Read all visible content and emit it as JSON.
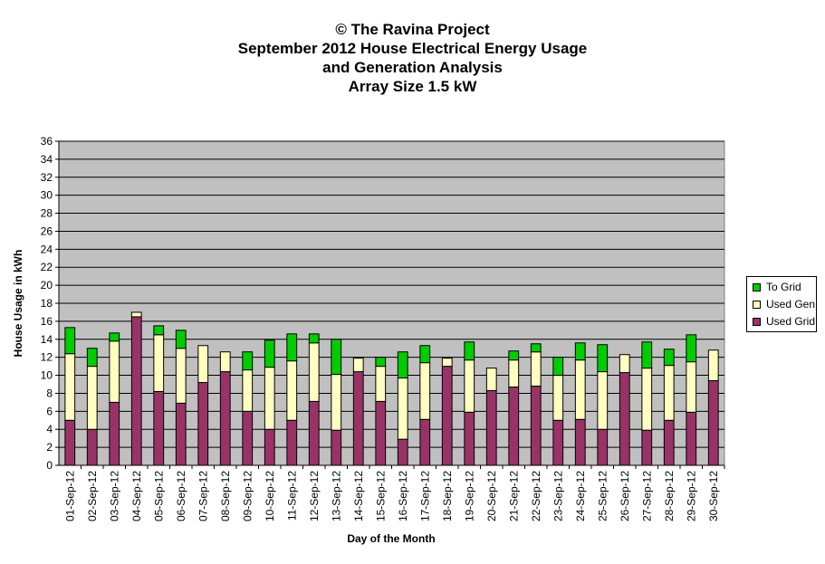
{
  "chart_data": {
    "type": "bar",
    "stacked": true,
    "title_lines": [
      "© The Ravina Project",
      "September 2012 House Electrical Energy Usage",
      "and Generation Analysis",
      "Array Size 1.5 kW"
    ],
    "xlabel": "Day of the Month",
    "ylabel": "House Usage in kWh",
    "ylim": [
      0,
      36
    ],
    "ytick_step": 2,
    "grid": true,
    "legend_position": "right",
    "categories": [
      "01-Sep-12",
      "02-Sep-12",
      "03-Sep-12",
      "04-Sep-12",
      "05-Sep-12",
      "06-Sep-12",
      "07-Sep-12",
      "08-Sep-12",
      "09-Sep-12",
      "10-Sep-12",
      "11-Sep-12",
      "12-Sep-12",
      "13-Sep-12",
      "14-Sep-12",
      "15-Sep-12",
      "16-Sep-12",
      "17-Sep-12",
      "18-Sep-12",
      "19-Sep-12",
      "20-Sep-12",
      "21-Sep-12",
      "22-Sep-12",
      "23-Sep-12",
      "24-Sep-12",
      "25-Sep-12",
      "26-Sep-12",
      "27-Sep-12",
      "28-Sep-12",
      "29-Sep-12",
      "30-Sep-12"
    ],
    "series": [
      {
        "name": "Used Grid",
        "color": "#993366",
        "values": [
          5.0,
          4.0,
          7.0,
          16.5,
          8.2,
          6.9,
          9.2,
          10.4,
          6.0,
          4.0,
          5.0,
          7.1,
          3.9,
          10.4,
          7.1,
          2.9,
          5.1,
          11.0,
          5.9,
          8.3,
          8.7,
          8.8,
          5.0,
          5.1,
          4.0,
          10.3,
          3.9,
          5.0,
          5.9,
          9.4
        ]
      },
      {
        "name": "Used Gen",
        "color": "#ffffc0",
        "values": [
          7.4,
          7.0,
          6.8,
          0.5,
          6.3,
          6.1,
          4.1,
          2.2,
          4.6,
          6.9,
          6.6,
          6.5,
          6.2,
          1.5,
          3.9,
          6.8,
          6.3,
          0.9,
          5.8,
          2.5,
          3.0,
          3.8,
          5.0,
          6.6,
          6.4,
          2.0,
          6.9,
          6.1,
          5.6,
          3.4
        ]
      },
      {
        "name": "To Grid",
        "color": "#00cc00",
        "values": [
          2.9,
          2.0,
          0.9,
          0.0,
          1.0,
          2.0,
          0.0,
          0.0,
          2.0,
          3.0,
          3.0,
          1.0,
          3.9,
          0.0,
          1.0,
          2.9,
          1.9,
          0.0,
          2.0,
          0.0,
          1.0,
          0.9,
          2.0,
          1.9,
          3.0,
          0.0,
          2.9,
          1.8,
          3.0,
          0.0
        ]
      }
    ],
    "legend_order": [
      "To Grid",
      "Used Gen",
      "Used Grid"
    ]
  }
}
